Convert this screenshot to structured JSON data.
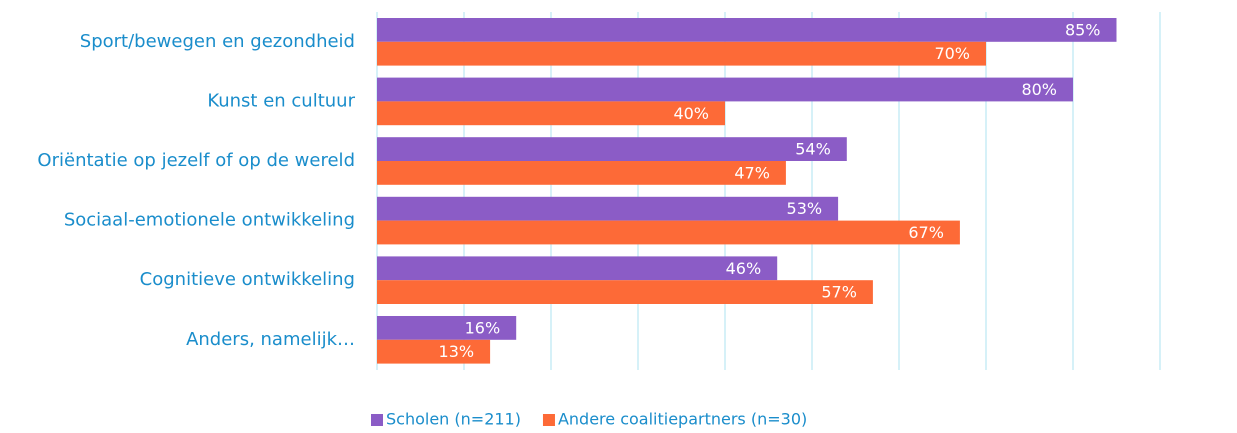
{
  "chart_data": {
    "type": "bar",
    "orientation": "horizontal",
    "categories": [
      "Sport/bewegen en gezondheid",
      "Kunst en cultuur",
      "Oriëntatie op jezelf of op de wereld",
      "Sociaal-emotionele ontwikkeling",
      "Cognitieve ontwikkeling",
      "Anders, namelijk…"
    ],
    "series": [
      {
        "name": "Scholen (n=211)",
        "color": "#8b5cc6",
        "values": [
          85,
          80,
          54,
          53,
          46,
          16
        ],
        "value_labels": [
          "85%",
          "80%",
          "54%",
          "53%",
          "46%",
          "16%"
        ]
      },
      {
        "name": "Andere coalitiepartners (n=30)",
        "color": "#fd6a37",
        "values": [
          70,
          40,
          47,
          67,
          57,
          13
        ],
        "value_labels": [
          "70%",
          "40%",
          "47%",
          "67%",
          "57%",
          "13%"
        ]
      }
    ],
    "xlim": [
      0,
      90
    ],
    "xticks": [
      0,
      10,
      20,
      30,
      40,
      50,
      60,
      70,
      80,
      90
    ],
    "grid": true,
    "legend": "bottom"
  }
}
